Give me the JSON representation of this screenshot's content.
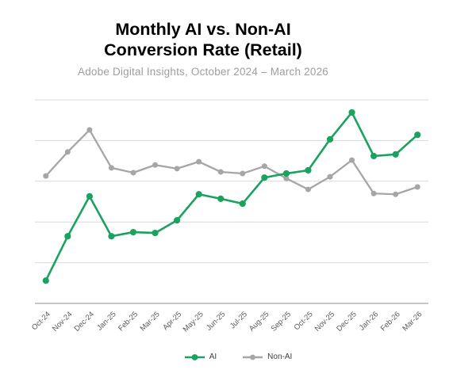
{
  "title": {
    "line1": "Monthly AI vs. Non-AI",
    "line2": "Conversion Rate (Retail)"
  },
  "subtitle": "Adobe Digital Insights, October 2024 – March 2026",
  "colors": {
    "background": "#ffffff",
    "title_text": "#000000",
    "subtitle_text": "#9e9e9e",
    "gridline": "#d9d9d9",
    "axis_line": "#bfbfbf",
    "axis_label_text": "#595959",
    "legend_text": "#404040"
  },
  "chart_data": {
    "type": "line",
    "title": "Monthly AI vs. Non-AI Conversion Rate (Retail)",
    "subtitle": "Adobe Digital Insights, October 2024 – March 2026",
    "x": [
      "Oct-24",
      "Nov-24",
      "Dec-24",
      "Jan-25",
      "Feb-25",
      "Mar-25",
      "Apr-25",
      "May-25",
      "Jun-25",
      "Jul-25",
      "Aug-25",
      "Sep-25",
      "Oct-25",
      "Nov-25",
      "Dec-25",
      "Jan-26",
      "Feb-26",
      "Mar-26"
    ],
    "series": [
      {
        "name": "AI",
        "color": "#1aa25f",
        "values": [
          0.56,
          1.65,
          2.63,
          1.65,
          1.75,
          1.73,
          2.04,
          2.68,
          2.57,
          2.45,
          3.09,
          3.19,
          3.27,
          4.03,
          4.69,
          3.62,
          3.66,
          4.14
        ]
      },
      {
        "name": "Non-AI",
        "color": "#a6a6a6",
        "values": [
          3.13,
          3.72,
          4.26,
          3.33,
          3.21,
          3.4,
          3.31,
          3.48,
          3.23,
          3.19,
          3.37,
          3.07,
          2.8,
          3.11,
          3.52,
          2.7,
          2.68,
          2.86
        ]
      }
    ],
    "xlabel": "",
    "ylabel": "",
    "ylim": [
      0,
      5
    ],
    "y_gridline_step": 1,
    "y_tick_labels_visible": false,
    "grid": "horizontal",
    "legend_position": "bottom"
  }
}
